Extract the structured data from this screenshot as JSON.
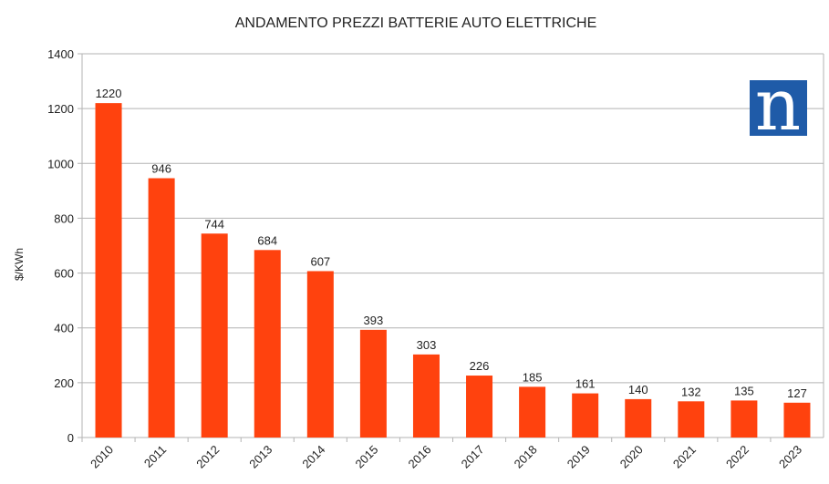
{
  "chart_data": {
    "type": "bar",
    "title": "ANDAMENTO PREZZI BATTERIE AUTO ELETTRICHE",
    "xlabel": "",
    "ylabel": "$/KWh",
    "categories": [
      "2010",
      "2011",
      "2012",
      "2013",
      "2014",
      "2015",
      "2016",
      "2017",
      "2018",
      "2019",
      "2020",
      "2021",
      "2022",
      "2023"
    ],
    "values": [
      1220,
      946,
      744,
      684,
      607,
      393,
      303,
      226,
      185,
      161,
      140,
      132,
      135,
      127
    ],
    "ylim": [
      0,
      1400
    ],
    "yticks": [
      0,
      200,
      400,
      600,
      800,
      1000,
      1200,
      1400
    ],
    "grid": true,
    "legend": "none",
    "bar_color": "#ff420e",
    "data_labels": true
  },
  "logo": {
    "text": "n",
    "color": "#1f5ba8"
  }
}
